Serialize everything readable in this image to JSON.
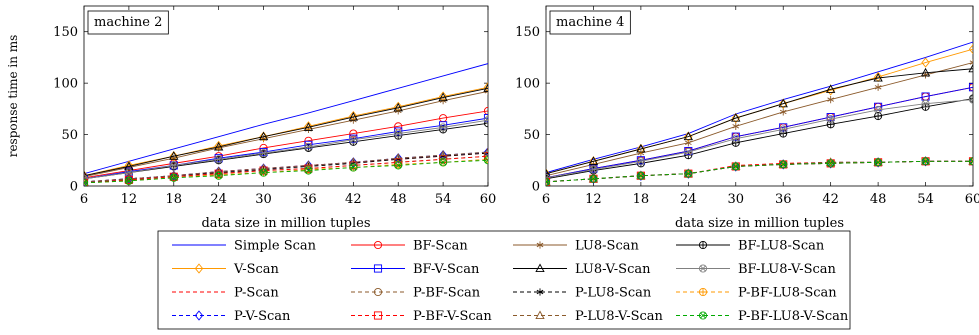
{
  "shared_axes": {
    "ylabel": "response time in ms",
    "xlabel": "data size in million tuples",
    "x_ticks": [
      6,
      12,
      18,
      24,
      30,
      36,
      42,
      48,
      54,
      60
    ],
    "y_ticks": [
      0,
      50,
      100,
      150
    ]
  },
  "legend_entries": [
    {
      "label": "Simple Scan",
      "color": "#0000ff",
      "dash": "solid",
      "marker": "none"
    },
    {
      "label": "BF-Scan",
      "color": "#ff0000",
      "dash": "solid",
      "marker": "circle"
    },
    {
      "label": "LU8-Scan",
      "color": "#8b5a2b",
      "dash": "solid",
      "marker": "star"
    },
    {
      "label": "BF-LU8-Scan",
      "color": "#000000",
      "dash": "solid",
      "marker": "oplus"
    },
    {
      "label": "V-Scan",
      "color": "#ff9900",
      "dash": "solid",
      "marker": "diamond"
    },
    {
      "label": "BF-V-Scan",
      "color": "#0000ff",
      "dash": "solid",
      "marker": "square"
    },
    {
      "label": "LU8-V-Scan",
      "color": "#000000",
      "dash": "solid",
      "marker": "triangle"
    },
    {
      "label": "BF-LU8-V-Scan",
      "color": "#808080",
      "dash": "solid",
      "marker": "otimes"
    },
    {
      "label": "P-Scan",
      "color": "#ff0000",
      "dash": "dashed",
      "marker": "none"
    },
    {
      "label": "P-BF-Scan",
      "color": "#8b5a2b",
      "dash": "dashed",
      "marker": "circle"
    },
    {
      "label": "P-LU8-Scan",
      "color": "#000000",
      "dash": "dashed",
      "marker": "star"
    },
    {
      "label": "P-BF-LU8-Scan",
      "color": "#ff9900",
      "dash": "dashed",
      "marker": "oplus"
    },
    {
      "label": "P-V-Scan",
      "color": "#0000ff",
      "dash": "dashed",
      "marker": "diamond"
    },
    {
      "label": "P-BF-V-Scan",
      "color": "#ff0000",
      "dash": "dashed",
      "marker": "square"
    },
    {
      "label": "P-LU8-V-Scan",
      "color": "#8b5a2b",
      "dash": "dashed",
      "marker": "triangle"
    },
    {
      "label": "P-BF-LU8-V-Scan",
      "color": "#00aa00",
      "dash": "dashed",
      "marker": "otimes"
    }
  ],
  "chart_data": [
    {
      "type": "line",
      "title": "machine 2",
      "xlabel": "data size in million tuples",
      "ylabel": "response time in ms",
      "xlim": [
        6,
        60
      ],
      "ylim": [
        0,
        175
      ],
      "x": [
        6,
        12,
        18,
        24,
        30,
        36,
        42,
        48,
        54,
        60
      ],
      "series": [
        {
          "name": "Simple Scan",
          "values": [
            12,
            24,
            36,
            48,
            60,
            71,
            83,
            95,
            107,
            119
          ]
        },
        {
          "name": "BF-Scan",
          "values": [
            8,
            15,
            22,
            29,
            37,
            44,
            51,
            58,
            66,
            73
          ]
        },
        {
          "name": "LU8-Scan",
          "values": [
            9,
            18,
            27,
            37,
            46,
            55,
            64,
            73,
            83,
            92
          ]
        },
        {
          "name": "BF-LU8-Scan",
          "values": [
            7,
            13,
            19,
            25,
            31,
            37,
            43,
            49,
            55,
            61
          ]
        },
        {
          "name": "V-Scan",
          "values": [
            10,
            20,
            29,
            39,
            48,
            58,
            68,
            77,
            87,
            96
          ]
        },
        {
          "name": "BF-V-Scan",
          "values": [
            7,
            14,
            20,
            27,
            33,
            40,
            46,
            53,
            59,
            66
          ]
        },
        {
          "name": "LU8-V-Scan",
          "values": [
            10,
            19,
            29,
            38,
            48,
            57,
            67,
            76,
            86,
            95
          ]
        },
        {
          "name": "BF-LU8-V-Scan",
          "values": [
            7,
            13,
            20,
            26,
            32,
            38,
            45,
            51,
            57,
            64
          ]
        },
        {
          "name": "P-Scan",
          "values": [
            4,
            7,
            10,
            14,
            17,
            20,
            23,
            26,
            29,
            32
          ]
        },
        {
          "name": "P-BF-Scan",
          "values": [
            3,
            6,
            9,
            12,
            15,
            17,
            20,
            23,
            26,
            29
          ]
        },
        {
          "name": "P-LU8-Scan",
          "values": [
            4,
            7,
            10,
            13,
            16,
            19,
            22,
            26,
            29,
            32
          ]
        },
        {
          "name": "P-BF-LU8-Scan",
          "values": [
            3,
            5,
            8,
            11,
            13,
            16,
            18,
            21,
            23,
            26
          ]
        },
        {
          "name": "P-V-Scan",
          "values": [
            4,
            7,
            10,
            14,
            17,
            20,
            23,
            27,
            30,
            33
          ]
        },
        {
          "name": "P-BF-V-Scan",
          "values": [
            3,
            6,
            9,
            12,
            15,
            17,
            20,
            23,
            26,
            29
          ]
        },
        {
          "name": "P-LU8-V-Scan",
          "values": [
            4,
            7,
            10,
            14,
            17,
            20,
            23,
            27,
            30,
            33
          ]
        },
        {
          "name": "P-BF-LU8-V-Scan",
          "values": [
            3,
            5,
            8,
            10,
            13,
            15,
            18,
            20,
            23,
            25
          ]
        }
      ]
    },
    {
      "type": "line",
      "title": "machine 4",
      "xlabel": "data size in million tuples",
      "ylabel": "",
      "xlim": [
        6,
        60
      ],
      "ylim": [
        0,
        175
      ],
      "x": [
        6,
        12,
        18,
        24,
        30,
        36,
        42,
        48,
        54,
        60
      ],
      "series": [
        {
          "name": "Simple Scan",
          "values": [
            13,
            26,
            38,
            51,
            70,
            84,
            97,
            111,
            125,
            140
          ]
        },
        {
          "name": "BF-Scan",
          "values": [
            8,
            17,
            25,
            34,
            48,
            57,
            67,
            77,
            87,
            96
          ]
        },
        {
          "name": "LU8-Scan",
          "values": [
            10,
            21,
            32,
            42,
            58,
            72,
            84,
            96,
            108,
            120
          ]
        },
        {
          "name": "BF-LU8-Scan",
          "values": [
            7,
            15,
            22,
            30,
            42,
            51,
            60,
            68,
            77,
            85
          ]
        },
        {
          "name": "V-Scan",
          "values": [
            12,
            24,
            36,
            48,
            66,
            80,
            93,
            106,
            120,
            133
          ]
        },
        {
          "name": "BF-V-Scan",
          "values": [
            8,
            17,
            25,
            34,
            48,
            57,
            67,
            77,
            87,
            96
          ]
        },
        {
          "name": "LU8-V-Scan",
          "values": [
            12,
            24,
            36,
            48,
            66,
            80,
            94,
            105,
            110,
            114
          ]
        },
        {
          "name": "BF-LU8-V-Scan",
          "values": [
            8,
            16,
            24,
            33,
            46,
            55,
            65,
            74,
            80,
            84
          ]
        },
        {
          "name": "P-Scan",
          "values": [
            4,
            7,
            10,
            12,
            20,
            22,
            23,
            23,
            24,
            24
          ]
        },
        {
          "name": "P-BF-Scan",
          "values": [
            4,
            7,
            10,
            12,
            19,
            21,
            22,
            23,
            24,
            24
          ]
        },
        {
          "name": "P-LU8-Scan",
          "values": [
            4,
            7,
            10,
            12,
            19,
            21,
            23,
            23,
            24,
            24
          ]
        },
        {
          "name": "P-BF-LU8-Scan",
          "values": [
            4,
            7,
            10,
            12,
            19,
            21,
            22,
            23,
            24,
            24
          ]
        },
        {
          "name": "P-V-Scan",
          "values": [
            4,
            7,
            10,
            12,
            19,
            21,
            22,
            23,
            24,
            24
          ]
        },
        {
          "name": "P-BF-V-Scan",
          "values": [
            4,
            7,
            10,
            12,
            19,
            21,
            22,
            23,
            24,
            24
          ]
        },
        {
          "name": "P-LU8-V-Scan",
          "values": [
            4,
            7,
            10,
            12,
            19,
            21,
            23,
            23,
            24,
            24
          ]
        },
        {
          "name": "P-BF-LU8-V-Scan",
          "values": [
            4,
            7,
            10,
            12,
            19,
            21,
            22,
            23,
            24,
            24
          ]
        }
      ]
    }
  ]
}
